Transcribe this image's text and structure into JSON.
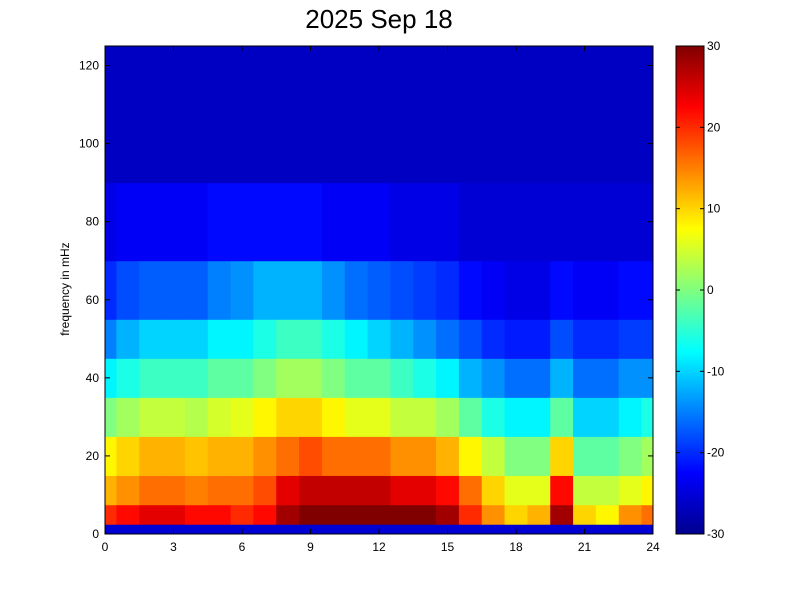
{
  "figure": {
    "title": "2025 Sep 18",
    "ylabel": "frequency in mHz",
    "xlabel": ""
  },
  "chart_data": {
    "type": "heatmap",
    "title": "2025 Sep 18",
    "xlabel": "",
    "ylabel": "frequency in mHz",
    "xlim": [
      0,
      24
    ],
    "ylim": [
      0,
      125
    ],
    "xticks": [
      0,
      3,
      6,
      9,
      12,
      15,
      18,
      21,
      24
    ],
    "yticks": [
      0,
      20,
      40,
      60,
      80,
      100,
      120
    ],
    "colormap": "jet",
    "colorbar": {
      "range": [
        -30,
        30
      ],
      "ticks": [
        -30,
        -20,
        -10,
        0,
        10,
        20,
        30
      ],
      "position": "right"
    },
    "grid": false,
    "hours": [
      0,
      1,
      2,
      3,
      4,
      5,
      6,
      7,
      8,
      9,
      10,
      11,
      12,
      13,
      14,
      15,
      16,
      17,
      18,
      19,
      20,
      21,
      22,
      23,
      24
    ],
    "frequencies_mHz": [
      0,
      5,
      10,
      20,
      30,
      40,
      50,
      60,
      80,
      100,
      125
    ],
    "values_dB": [
      [
        -25,
        20,
        12,
        8,
        0,
        -8,
        -15,
        -20,
        -24,
        -26,
        -26
      ],
      [
        -25,
        22,
        14,
        10,
        2,
        -6,
        -12,
        -18,
        -23,
        -26,
        -26
      ],
      [
        -25,
        24,
        16,
        12,
        4,
        -4,
        -10,
        -17,
        -23,
        -26,
        -26
      ],
      [
        -25,
        24,
        16,
        12,
        4,
        -4,
        -10,
        -17,
        -23,
        -26,
        -26
      ],
      [
        -25,
        22,
        15,
        11,
        3,
        -4,
        -10,
        -17,
        -23,
        -26,
        -26
      ],
      [
        -25,
        22,
        16,
        12,
        5,
        -2,
        -8,
        -15,
        -22,
        -26,
        -26
      ],
      [
        -25,
        20,
        16,
        12,
        6,
        -2,
        -8,
        -14,
        -22,
        -26,
        -26
      ],
      [
        -25,
        22,
        18,
        14,
        8,
        0,
        -6,
        -12,
        -22,
        -26,
        -26
      ],
      [
        -25,
        28,
        24,
        16,
        10,
        2,
        -4,
        -12,
        -22,
        -26,
        -26
      ],
      [
        -25,
        30,
        26,
        18,
        10,
        2,
        -4,
        -12,
        -22,
        -26,
        -26
      ],
      [
        -25,
        30,
        26,
        16,
        8,
        0,
        -6,
        -14,
        -23,
        -26,
        -26
      ],
      [
        -25,
        30,
        26,
        16,
        6,
        -2,
        -8,
        -16,
        -23,
        -26,
        -26
      ],
      [
        -25,
        30,
        26,
        16,
        6,
        -2,
        -10,
        -17,
        -23,
        -26,
        -26
      ],
      [
        -25,
        30,
        24,
        14,
        4,
        -4,
        -12,
        -18,
        -24,
        -26,
        -26
      ],
      [
        -25,
        30,
        24,
        14,
        4,
        -6,
        -14,
        -19,
        -24,
        -26,
        -26
      ],
      [
        -25,
        28,
        22,
        12,
        2,
        -8,
        -16,
        -20,
        -24,
        -26,
        -26
      ],
      [
        -25,
        20,
        16,
        8,
        -2,
        -12,
        -18,
        -22,
        -25,
        -26,
        -26
      ],
      [
        -25,
        14,
        10,
        4,
        -6,
        -14,
        -20,
        -23,
        -25,
        -26,
        -26
      ],
      [
        -25,
        10,
        6,
        0,
        -8,
        -16,
        -21,
        -24,
        -25,
        -26,
        -26
      ],
      [
        -25,
        12,
        6,
        0,
        -8,
        -16,
        -21,
        -24,
        -25,
        -26,
        -26
      ],
      [
        -25,
        28,
        22,
        10,
        -2,
        -12,
        -18,
        -22,
        -25,
        -26,
        -26
      ],
      [
        -25,
        10,
        4,
        -2,
        -10,
        -16,
        -20,
        -23,
        -25,
        -26,
        -26
      ],
      [
        -25,
        8,
        4,
        -2,
        -10,
        -16,
        -20,
        -23,
        -25,
        -26,
        -26
      ],
      [
        -25,
        14,
        6,
        0,
        -8,
        -14,
        -19,
        -22,
        -25,
        -26,
        -26
      ],
      [
        -25,
        16,
        8,
        2,
        -6,
        -14,
        -19,
        -22,
        -25,
        -26,
        -26
      ]
    ]
  }
}
